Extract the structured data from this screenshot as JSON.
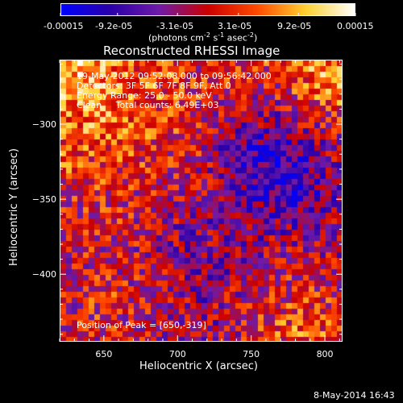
{
  "chart_data": {
    "type": "heatmap",
    "title": "Reconstructed RHESSI Image",
    "xlabel": "Heliocentric X (arcsec)",
    "ylabel": "Heliocentric Y (arcsec)",
    "xlim": [
      620,
      812
    ],
    "ylim": [
      -445,
      -257
    ],
    "x_ticks": [
      650,
      700,
      750,
      800
    ],
    "y_ticks": [
      -300,
      -350,
      -400
    ],
    "colorbar": {
      "ticks": [
        "-0.00015",
        "-9.2e-05",
        "-3.1e-05",
        "3.1e-05",
        "9.2e-05",
        "0.00015"
      ],
      "values": [
        -0.00015,
        -9.2e-05,
        -3.1e-05,
        3.1e-05,
        9.2e-05,
        0.00015
      ],
      "unit_label": "(photons cm-2 s-1 asec-2)",
      "colors": [
        "#0000ff",
        "#2a00a8",
        "#6e1ba8",
        "#cc0000",
        "#ff4a00",
        "#ffd030",
        "#ffffff"
      ]
    },
    "annotations": [
      "19-May-2012 09:52:08.000 to 09:56:42.000",
      "Detectors: 3F 5F 6F 7F 8F 9F, Att 0",
      "Energy Range: 25.0 - 50.0 keV",
      "Clean     Total counts: 6.49E+03"
    ],
    "peak_label": "Position of Peak = [650,-319]",
    "peak": {
      "x": 650,
      "y": -319
    },
    "footer_date": "8-May-2014 16:43"
  },
  "colorbar_ticks": [
    "-0.00015",
    "-9.2e-05",
    "-3.1e-05",
    "3.1e-05",
    "9.2e-05",
    "0.00015"
  ],
  "units_main": "(photons cm",
  "units_sup1": "-2",
  "units_mid": " s",
  "units_sup2": "-1",
  "units_mid2": " asec",
  "units_sup3": "-2",
  "units_end": ")"
}
